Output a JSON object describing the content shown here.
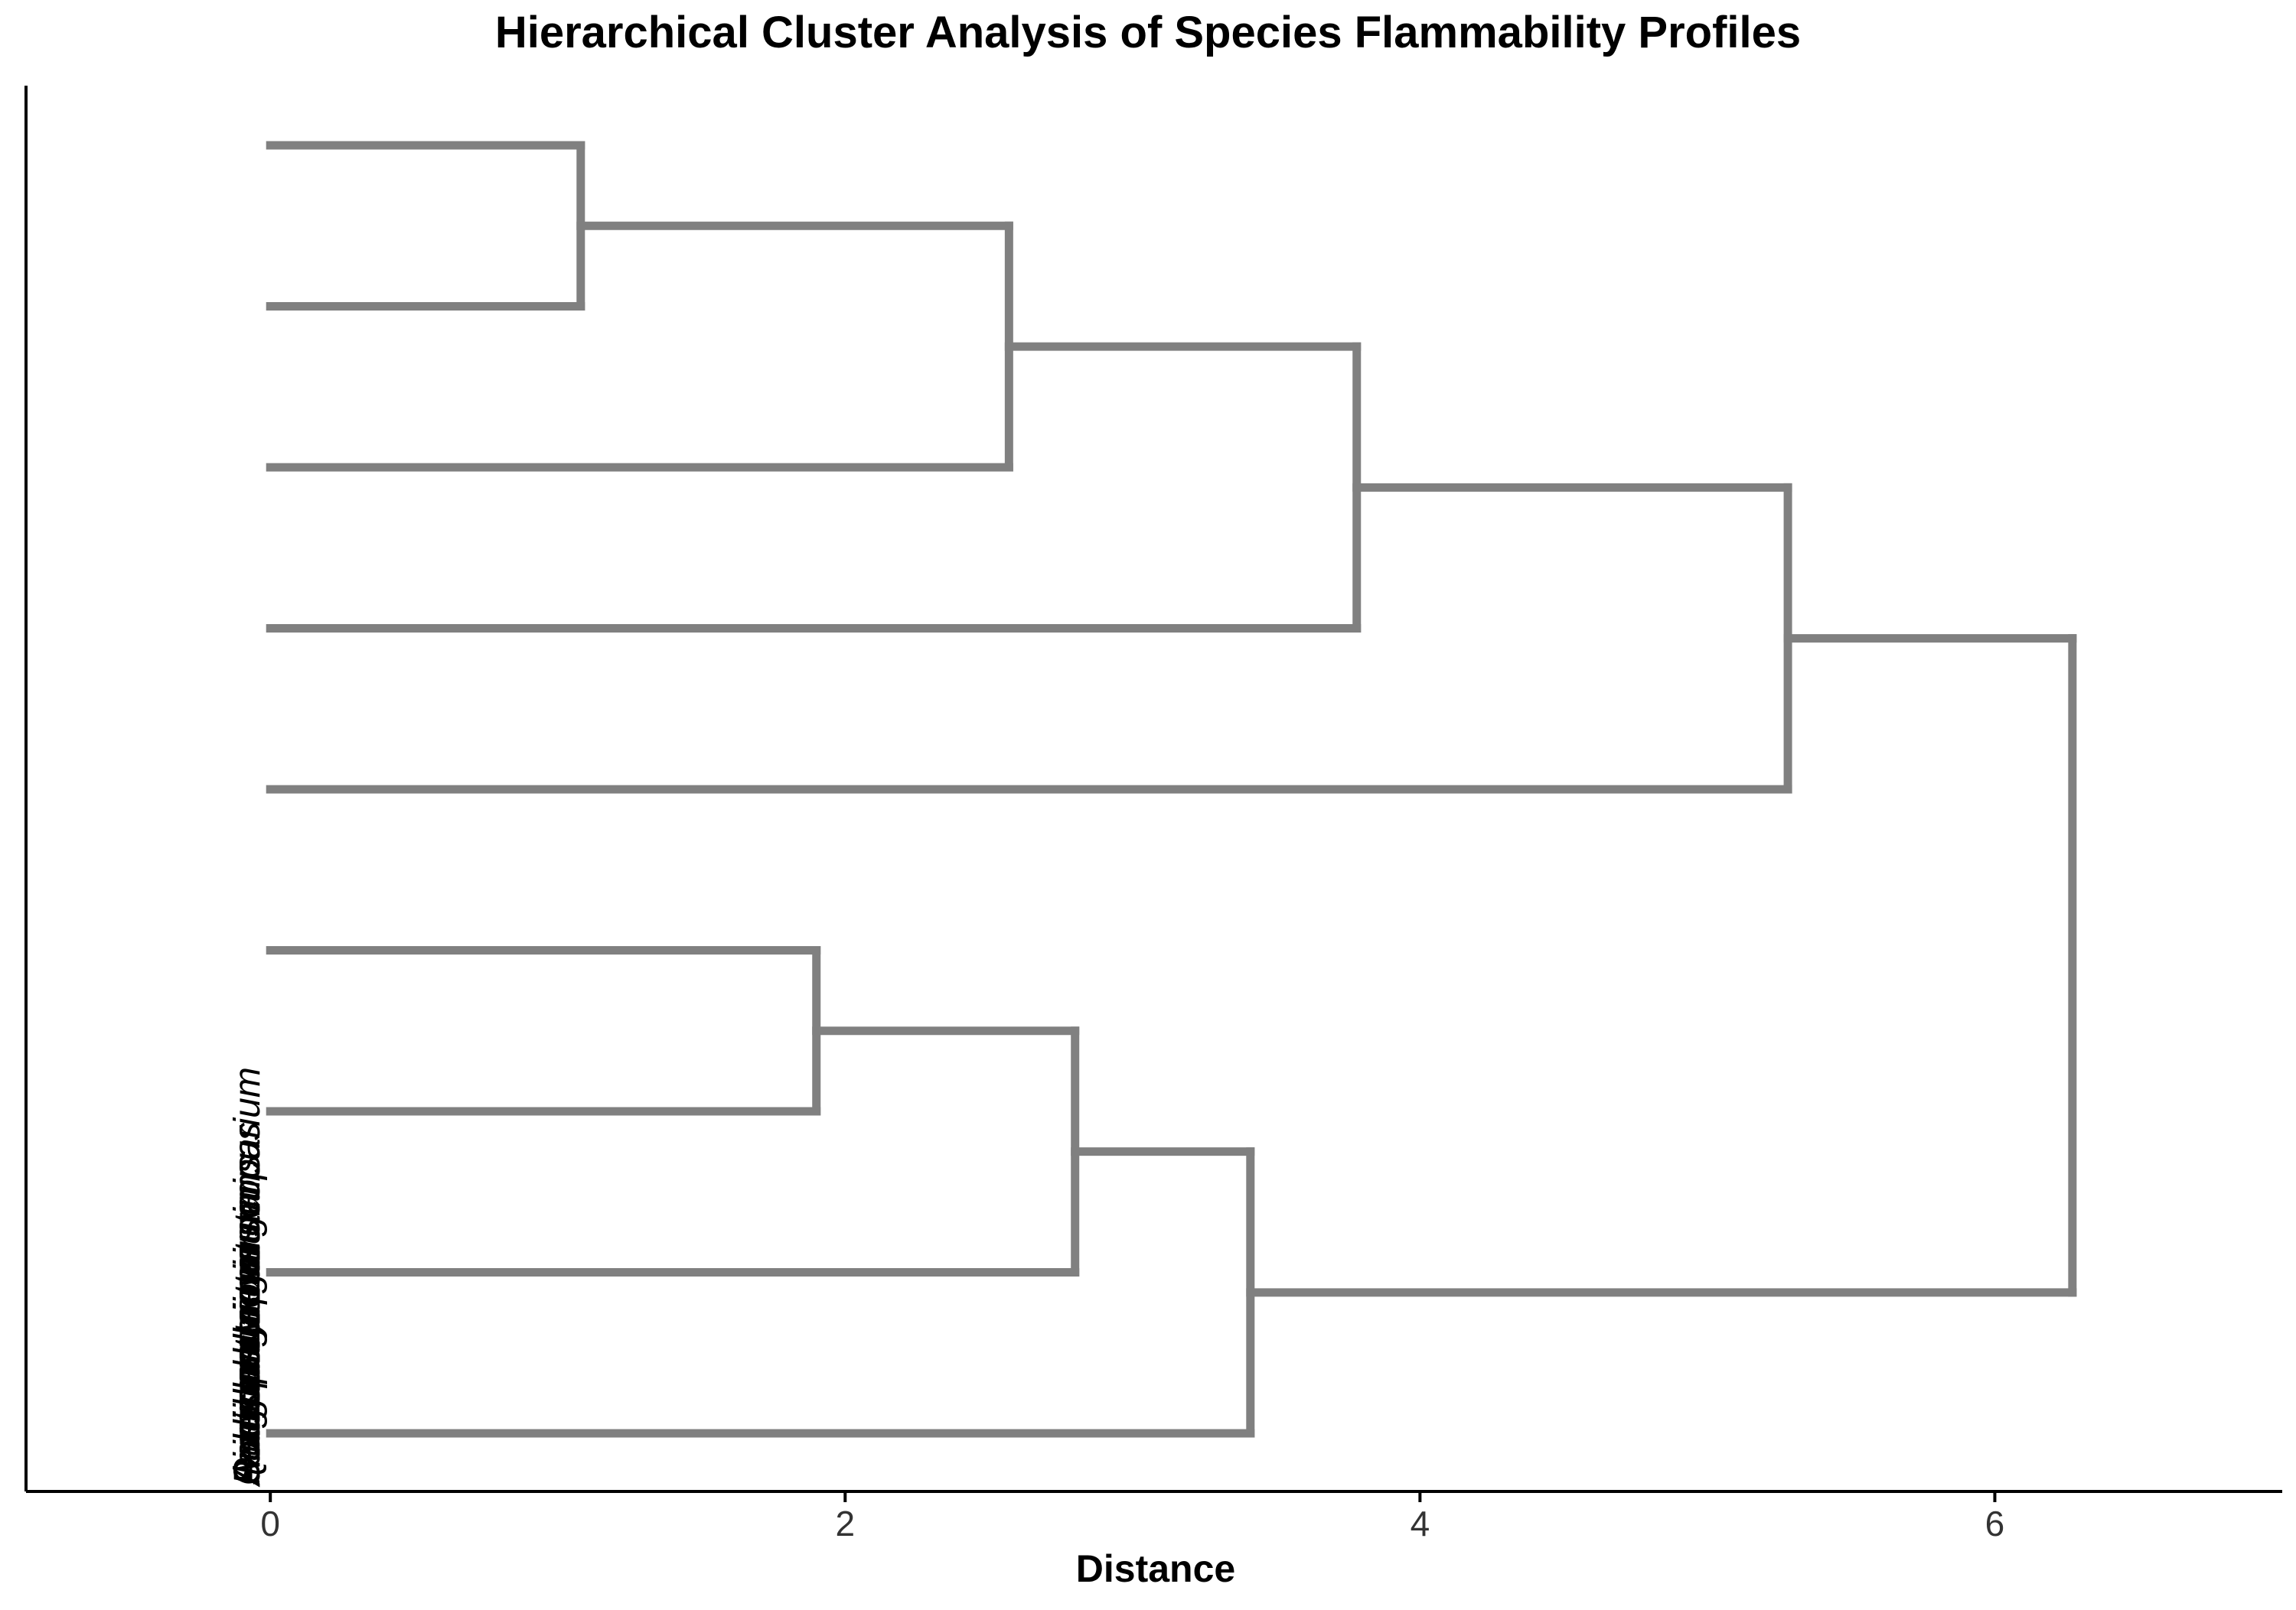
{
  "chart_data": {
    "type": "dendrogram",
    "title": "Hierarchical Cluster Analysis of Species Flammability Profiles",
    "xlabel": "Distance",
    "ylabel": "",
    "xlim": [
      -0.85,
      7.0
    ],
    "x_ticks": [
      0,
      2,
      4,
      6
    ],
    "x_tick_labels": [
      "0",
      "2",
      "4",
      "6"
    ],
    "grid": false,
    "legend": "none",
    "leaf_labels": [
      "Andropogon virginicus",
      "Schizachyrium scoparium",
      "Aristida stricta",
      "Sorghastrum nutans",
      "Panicum virgatum",
      "Quercus laevis",
      "Pinus palustris",
      "Ilex glabra",
      "Serenoa repens"
    ],
    "merges": [
      {
        "left": "leaf:0",
        "right": "leaf:1",
        "height": 1.08
      },
      {
        "left": "node:0",
        "right": "leaf:2",
        "height": 2.57
      },
      {
        "left": "node:1",
        "right": "leaf:3",
        "height": 3.78
      },
      {
        "left": "node:2",
        "right": "leaf:4",
        "height": 5.28
      },
      {
        "left": "leaf:5",
        "right": "leaf:6",
        "height": 1.9
      },
      {
        "left": "node:4",
        "right": "leaf:7",
        "height": 2.8
      },
      {
        "left": "node:5",
        "right": "leaf:8",
        "height": 3.41
      },
      {
        "left": "node:3",
        "right": "node:6",
        "height": 6.27
      }
    ],
    "colors": {
      "branch": "#808080",
      "axis": "#000000",
      "text": "#000000",
      "background": "#ffffff"
    }
  }
}
